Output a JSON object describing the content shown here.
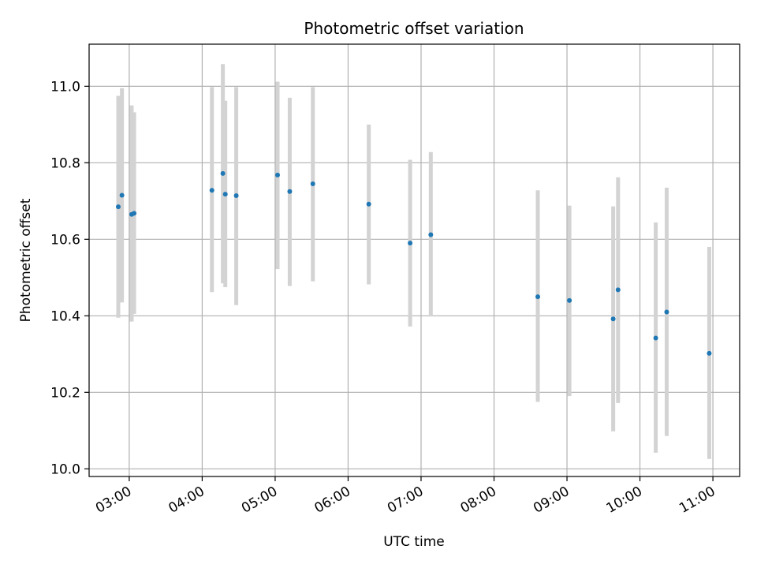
{
  "chart_data": {
    "type": "scatter",
    "title": "Photometric offset variation",
    "xlabel": "UTC time",
    "ylabel": "Photometric offset",
    "x_ticks": [
      "03:00",
      "04:00",
      "05:00",
      "06:00",
      "07:00",
      "08:00",
      "09:00",
      "10:00",
      "11:00"
    ],
    "y_ticks": [
      "10.0",
      "10.2",
      "10.4",
      "10.6",
      "10.8",
      "11.0"
    ],
    "xlim": [
      "02:27",
      "11:22"
    ],
    "ylim": [
      9.98,
      11.11
    ],
    "grid": true,
    "colors": {
      "point": "#1f77b4",
      "errorbar": "#d3d3d3",
      "grid": "#b0b0b0"
    },
    "points": [
      {
        "x": "02:51",
        "y": 10.685,
        "low": 10.395,
        "high": 10.975
      },
      {
        "x": "02:54",
        "y": 10.715,
        "low": 10.435,
        "high": 10.995
      },
      {
        "x": "03:02",
        "y": 10.665,
        "low": 10.385,
        "high": 10.95
      },
      {
        "x": "03:04",
        "y": 10.668,
        "low": 10.405,
        "high": 10.932
      },
      {
        "x": "04:08",
        "y": 10.728,
        "low": 10.462,
        "high": 10.998
      },
      {
        "x": "04:17",
        "y": 10.772,
        "low": 10.485,
        "high": 11.058
      },
      {
        "x": "04:19",
        "y": 10.718,
        "low": 10.475,
        "high": 10.962
      },
      {
        "x": "04:28",
        "y": 10.714,
        "low": 10.428,
        "high": 10.998
      },
      {
        "x": "05:02",
        "y": 10.768,
        "low": 10.522,
        "high": 11.012
      },
      {
        "x": "05:12",
        "y": 10.725,
        "low": 10.478,
        "high": 10.97
      },
      {
        "x": "05:31",
        "y": 10.745,
        "low": 10.49,
        "high": 10.998
      },
      {
        "x": "06:17",
        "y": 10.692,
        "low": 10.482,
        "high": 10.9
      },
      {
        "x": "06:51",
        "y": 10.59,
        "low": 10.372,
        "high": 10.808
      },
      {
        "x": "07:08",
        "y": 10.612,
        "low": 10.398,
        "high": 10.828
      },
      {
        "x": "08:36",
        "y": 10.45,
        "low": 10.175,
        "high": 10.728
      },
      {
        "x": "09:02",
        "y": 10.44,
        "low": 10.19,
        "high": 10.688
      },
      {
        "x": "09:38",
        "y": 10.392,
        "low": 10.098,
        "high": 10.686
      },
      {
        "x": "09:42",
        "y": 10.468,
        "low": 10.172,
        "high": 10.762
      },
      {
        "x": "10:13",
        "y": 10.342,
        "low": 10.042,
        "high": 10.644
      },
      {
        "x": "10:22",
        "y": 10.41,
        "low": 10.086,
        "high": 10.735
      },
      {
        "x": "10:57",
        "y": 10.302,
        "low": 10.026,
        "high": 10.58
      }
    ]
  }
}
